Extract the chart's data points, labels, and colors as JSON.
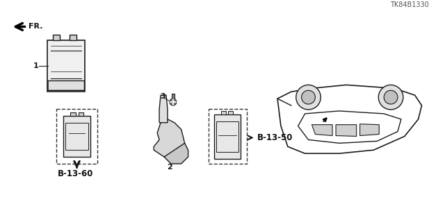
{
  "title": "",
  "bg_color": "#ffffff",
  "part_number": "TK84B1330",
  "labels": {
    "b1360": "B-13-60",
    "b1350": "B-13-50",
    "fr": "FR.",
    "num1": "1",
    "num2": "2",
    "num3": "3"
  },
  "line_color": "#1a1a1a",
  "arrow_color": "#1a1a1a",
  "dashed_box_color": "#333333",
  "text_color": "#111111"
}
